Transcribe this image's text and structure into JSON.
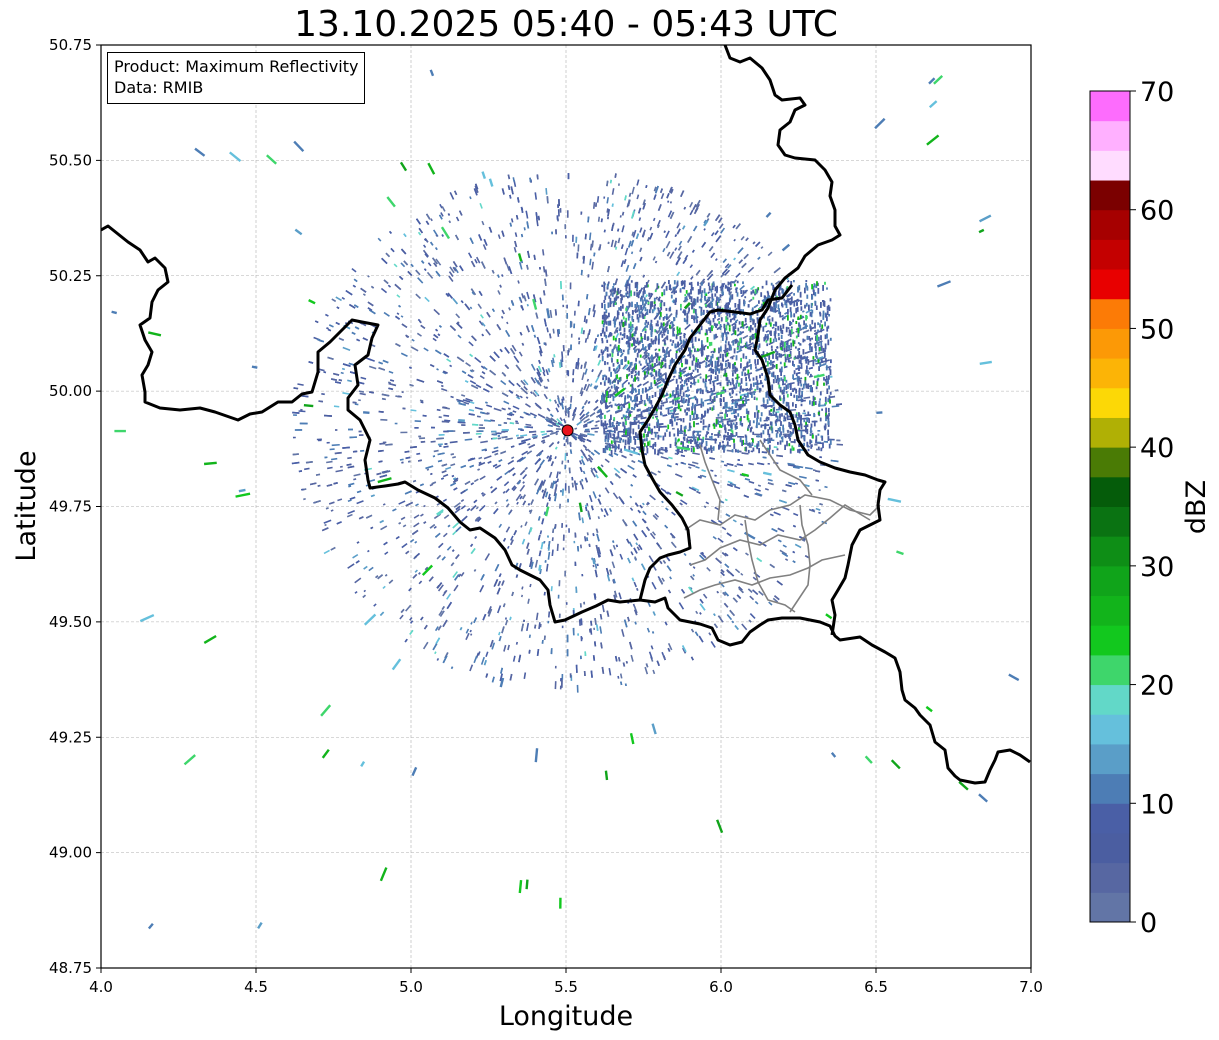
{
  "title": "13.10.2025 05:40 - 05:43 UTC",
  "info_box": {
    "product": "Product: Maximum Reflectivity",
    "data": "Data: RMIB"
  },
  "chart_data": {
    "type": "heatmap",
    "title": "13.10.2025 05:40 - 05:43 UTC",
    "xlabel": "Longitude",
    "ylabel": "Latitude",
    "xlim": [
      4.0,
      7.0
    ],
    "ylim": [
      48.75,
      50.75
    ],
    "x_ticks": [
      "4.0",
      "4.5",
      "5.0",
      "5.5",
      "6.0",
      "6.5",
      "7.0"
    ],
    "y_ticks": [
      "48.75",
      "49.00",
      "49.25",
      "49.50",
      "49.75",
      "50.00",
      "50.25",
      "50.50",
      "50.75"
    ],
    "grid": true,
    "radar_site": {
      "lon": 5.505,
      "lat": 49.915,
      "color": "#e8141c"
    },
    "colorbar": {
      "label": "dBZ",
      "range": [
        0,
        70
      ],
      "step": 2.5,
      "ticks": [
        "0",
        "10",
        "20",
        "30",
        "40",
        "50",
        "60",
        "70"
      ],
      "colors": [
        "#6275a6",
        "#5767a2",
        "#4b5ea1",
        "#4a5fa6",
        "#4d7db5",
        "#5a9ec8",
        "#65c0dc",
        "#62d8c8",
        "#3ed66b",
        "#12c81e",
        "#12b41b",
        "#10a41a",
        "#0e8e16",
        "#0a7312",
        "#055c0a",
        "#4a7b05",
        "#b0b005",
        "#fcd806",
        "#fcb406",
        "#fc9906",
        "#fc7b06",
        "#e80000",
        "#c40000",
        "#a60000",
        "#7b0000",
        "#ffdcff",
        "#ffb0ff",
        "#fd6cfd",
        "#f034f0"
      ]
    },
    "borders": {
      "country_color": "#000000",
      "region_color": "#808080"
    }
  }
}
